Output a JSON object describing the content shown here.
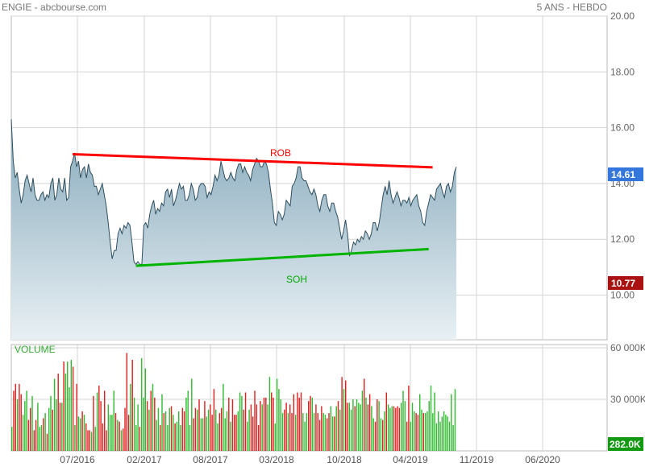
{
  "header": {
    "left_title": "ENGIE - abcbourse.com",
    "right_title": "5 ANS - HEBDO"
  },
  "colors": {
    "price_line": "#2f4f5f",
    "price_fill_top": "#86a9bb",
    "price_fill_bottom": "#e8f0f4",
    "grid": "#d4d4d4",
    "resistance": "#ff0000",
    "support": "#00b400",
    "volume_up": "#33bb33",
    "volume_down": "#dd2222",
    "last_price_badge": "#3377dd",
    "support_badge": "#aa1111",
    "volume_badge": "#119911"
  },
  "chart_data": [
    {
      "type": "line",
      "name": "price",
      "title": "",
      "x_ticks": [
        "07/2016",
        "02/2017",
        "08/2017",
        "03/2018",
        "10/2018",
        "04/2019",
        "11/2019",
        "06/2020"
      ],
      "y_ticks": [
        "20.00",
        "18.00",
        "16.00",
        "14.00",
        "12.00",
        "10.00"
      ],
      "ylim": [
        8.4,
        20.0
      ],
      "y": [
        16.3,
        14.8,
        14.2,
        14.4,
        13.8,
        13.3,
        13.6,
        14.1,
        14.3,
        14.0,
        13.7,
        14.2,
        13.6,
        13.4,
        13.4,
        13.6,
        13.7,
        13.4,
        13.6,
        13.5,
        14.0,
        14.2,
        13.4,
        13.6,
        14.2,
        13.8,
        13.7,
        14.2,
        13.4,
        13.5,
        14.6,
        14.8,
        15.1,
        14.6,
        14.8,
        14.2,
        14.5,
        14.6,
        14.2,
        14.7,
        14.4,
        14.3,
        13.9,
        13.9,
        13.6,
        13.8,
        14.0,
        13.6,
        13.2,
        12.6,
        11.9,
        11.3,
        11.6,
        11.6,
        12.2,
        12.4,
        12.2,
        12.5,
        12.4,
        12.6,
        12.5,
        11.9,
        11.2,
        11.1,
        11.2,
        11.1,
        11.1,
        12.5,
        12.6,
        12.4,
        12.9,
        13.2,
        13.4,
        12.9,
        13.1,
        13.0,
        13.3,
        13.2,
        13.7,
        13.8,
        13.5,
        13.8,
        13.2,
        13.4,
        13.7,
        14.0,
        13.8,
        13.9,
        13.4,
        13.4,
        13.6,
        14.0,
        13.8,
        13.4,
        13.5,
        13.9,
        14.0,
        14.0,
        13.9,
        13.5,
        13.7,
        13.6,
        13.9,
        14.3,
        14.1,
        14.3,
        14.8,
        14.5,
        14.2,
        14.1,
        14.2,
        14.4,
        14.2,
        14.1,
        14.5,
        14.7,
        14.7,
        14.4,
        14.6,
        14.4,
        14.3,
        14.1,
        14.5,
        14.7,
        14.9,
        14.8,
        14.6,
        14.6,
        14.8,
        14.7,
        14.4,
        13.8,
        13.3,
        12.6,
        12.5,
        13.0,
        12.9,
        12.7,
        12.9,
        13.4,
        13.3,
        13.2,
        13.9,
        14.0,
        14.2,
        14.6,
        14.6,
        14.2,
        14.1,
        14.1,
        13.9,
        13.7,
        13.6,
        13.8,
        13.6,
        13.2,
        13.0,
        13.4,
        13.6,
        13.6,
        13.2,
        13.0,
        13.3,
        13.3,
        13.0,
        12.8,
        12.4,
        12.0,
        12.3,
        12.7,
        12.2,
        11.4,
        11.6,
        11.9,
        11.8,
        12.0,
        11.9,
        12.1,
        12.0,
        12.3,
        12.2,
        12.0,
        12.2,
        12.6,
        12.6,
        12.3,
        12.6,
        13.1,
        13.6,
        13.9,
        13.6,
        14.1,
        13.6,
        13.3,
        13.5,
        13.7,
        13.5,
        13.2,
        13.4,
        13.4,
        13.3,
        13.5,
        13.2,
        13.4,
        13.5,
        13.6,
        13.2,
        13.0,
        12.6,
        12.5,
        13.0,
        13.3,
        13.6,
        13.5,
        13.4,
        13.8,
        13.9,
        14.0,
        13.7,
        13.5,
        13.9,
        14.0,
        13.7,
        13.9,
        14.4,
        14.6
      ]
    },
    {
      "type": "line",
      "name": "ROB",
      "x_index": [
        31,
        213
      ],
      "y": [
        15.05,
        14.58
      ]
    },
    {
      "type": "line",
      "name": "SOH",
      "x_index": [
        63,
        211
      ],
      "y": [
        11.05,
        11.65
      ]
    },
    {
      "type": "bar",
      "name": "VOLUME",
      "y_ticks": [
        "60 000K",
        "30 000K"
      ],
      "ylim": [
        0,
        60000
      ],
      "values": [
        14000,
        35000,
        39000,
        30000,
        39000,
        33000,
        21000,
        29000,
        35000,
        18000,
        25000,
        32000,
        12000,
        18000,
        28000,
        14000,
        15000,
        19000,
        22000,
        10000,
        25000,
        32000,
        24000,
        42000,
        30000,
        45000,
        28000,
        28000,
        52000,
        45000,
        52000,
        37000,
        53000,
        49000,
        15000,
        39000,
        20000,
        19000,
        23000,
        21000,
        16000,
        12000,
        12000,
        11000,
        32000,
        14000,
        34000,
        38000,
        29000,
        16000,
        35000,
        12000,
        27000,
        21000,
        21000,
        35000,
        22000,
        18000,
        17000,
        12000,
        13000,
        25000,
        57000,
        21000,
        39000,
        53000,
        31000,
        15000,
        27000,
        14000,
        54000,
        31000,
        48000,
        29000,
        24000,
        35000,
        39000,
        31000,
        18000,
        25000,
        15000,
        33000,
        22000,
        23000,
        15000,
        25000,
        26000,
        21000,
        16000,
        17000,
        23000,
        15000,
        25000,
        23000,
        31000,
        35000,
        15000,
        42000,
        19000,
        25000,
        24000,
        30000,
        19000,
        19000,
        29000,
        20000,
        24000,
        27000,
        21000,
        36000,
        24000,
        16000,
        22000,
        25000,
        39000,
        19000,
        23000,
        31000,
        17000,
        30000,
        21000,
        21000,
        23000,
        34000,
        32000,
        24000,
        34000,
        17000,
        24000,
        27000,
        20000,
        35000,
        27000,
        15000,
        29000,
        27000,
        31000,
        31000,
        27000,
        43000,
        34000,
        31000,
        16000,
        42000,
        36000,
        30000,
        22000,
        24000,
        28000,
        22000,
        27000,
        22000,
        33000,
        21000,
        34000,
        31000,
        34000,
        22000,
        17000,
        22000,
        29000,
        32000,
        31000,
        22000,
        27000,
        22000,
        18000,
        26000,
        22000,
        21000,
        19000,
        22000,
        26000,
        20000,
        20000,
        26000,
        29000,
        24000,
        43000,
        36000,
        41000,
        28000,
        28000,
        24000,
        30000,
        26000,
        30000,
        28000,
        27000,
        35000,
        42000,
        31000,
        27000,
        33000,
        26000,
        19000,
        17000,
        30000,
        29000,
        19000,
        18000,
        23000,
        34000,
        27000,
        25000,
        26000,
        26000,
        25000,
        26000,
        25000,
        28000,
        35000,
        29000,
        17000,
        38000,
        17000,
        28000,
        23000,
        22000,
        21000,
        33000,
        24000,
        22000,
        22000,
        23000,
        29000,
        38000,
        22000,
        34000,
        16000,
        23000,
        17000,
        20000,
        23000,
        21000,
        20000,
        17000,
        33000,
        15000,
        36000
      ]
    }
  ],
  "labels": {
    "resistance": "ROB",
    "support": "SOH",
    "volume_title": "VOLUME",
    "last_price": "14.61",
    "support_level": "10.77",
    "last_volume": "282.0K"
  }
}
